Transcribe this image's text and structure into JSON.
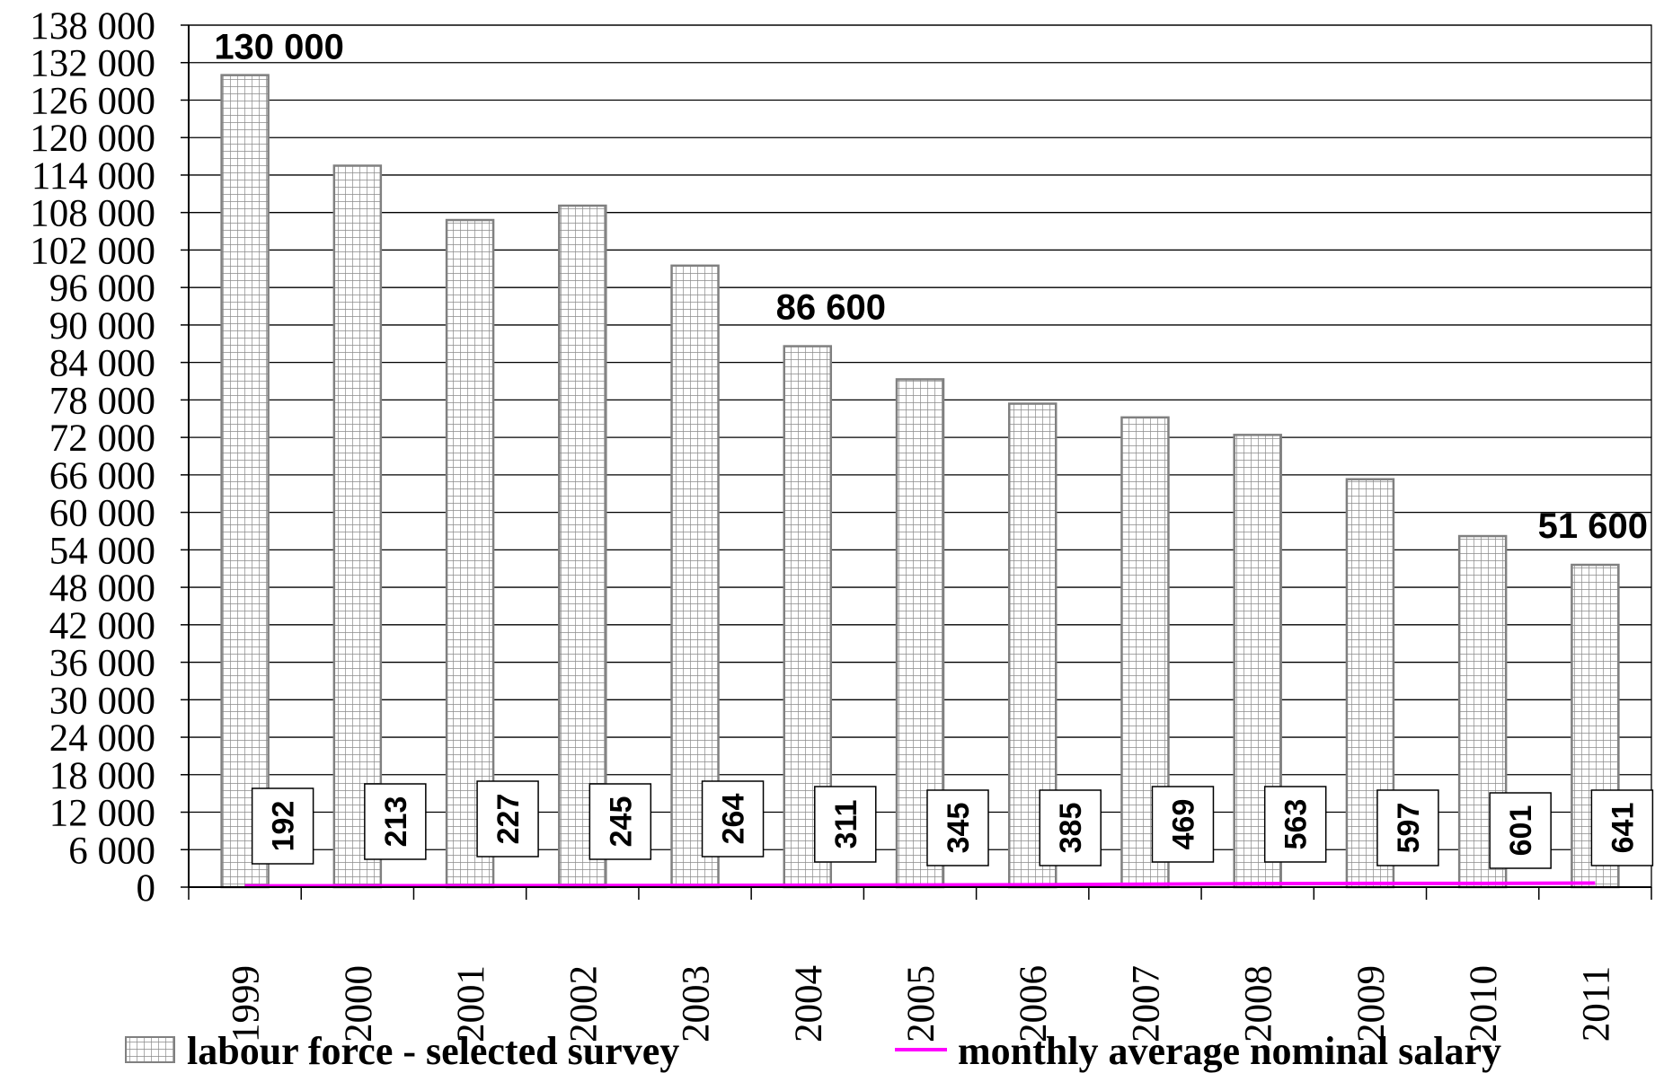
{
  "chart_data": {
    "type": "bar",
    "categories": [
      "1999",
      "2000",
      "2001",
      "2002",
      "2003",
      "2004",
      "2005",
      "2006",
      "2007",
      "2008",
      "2009",
      "2010",
      "2011"
    ],
    "series": [
      {
        "name": "labour force - selected survey",
        "type": "bar",
        "values": [
          130000,
          115500,
          106800,
          109100,
          99500,
          86600,
          81300,
          77400,
          75200,
          72400,
          65300,
          56200,
          51600
        ],
        "data_labels": {
          "0": "130 000",
          "5": "86 600",
          "12": "51 600"
        },
        "color": "#808080"
      },
      {
        "name": "monthly average nominal salary",
        "type": "line",
        "values": [
          192,
          213,
          227,
          245,
          264,
          311,
          345,
          385,
          469,
          563,
          597,
          601,
          641
        ],
        "data_labels": [
          "192",
          "213",
          "227",
          "245",
          "264",
          "311",
          "345",
          "385",
          "469",
          "563",
          "597",
          "601",
          "641"
        ],
        "color": "#ff00ff"
      }
    ],
    "ylim": [
      0,
      138000
    ],
    "y_ticks": [
      "0",
      "6 000",
      "12 000",
      "18 000",
      "24 000",
      "30 000",
      "36 000",
      "42 000",
      "48 000",
      "54 000",
      "60 000",
      "66 000",
      "72 000",
      "78 000",
      "84 000",
      "90 000",
      "96 000",
      "102 000",
      "108 000",
      "114 000",
      "120 000",
      "126 000",
      "132 000",
      "138 000"
    ],
    "y_tick_values": [
      0,
      6000,
      12000,
      18000,
      24000,
      30000,
      36000,
      42000,
      48000,
      54000,
      60000,
      66000,
      72000,
      78000,
      84000,
      90000,
      96000,
      102000,
      108000,
      114000,
      120000,
      126000,
      132000,
      138000
    ],
    "grid": true,
    "legend": "bottom",
    "title": "",
    "xlabel": "",
    "ylabel": ""
  },
  "legend": {
    "bar_label": "labour force - selected survey",
    "line_label": "monthly average nominal salary"
  }
}
